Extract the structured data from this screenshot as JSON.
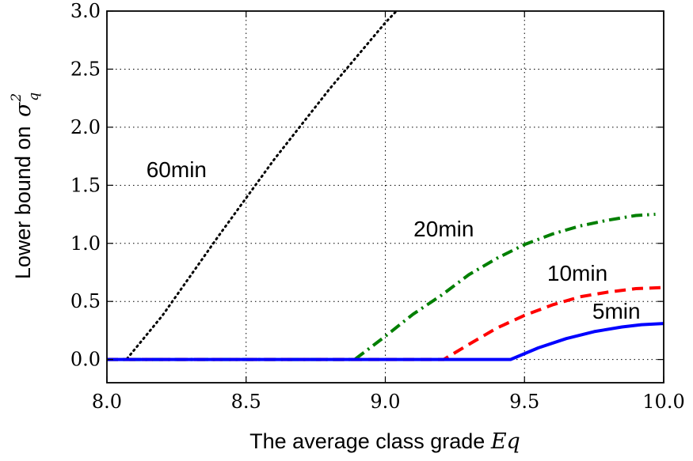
{
  "chart_data": {
    "type": "line",
    "title": "",
    "xlabel": "The average class grade",
    "xlabel_math": "Eq",
    "ylabel": "Lower bound on",
    "ylabel_math": "σ",
    "ylabel_math_sup": "2",
    "ylabel_math_sub": "q",
    "xlim": [
      8.0,
      10.0
    ],
    "ylim": [
      -0.2,
      3.0
    ],
    "xticks": [
      "8.0",
      "8.5",
      "9.0",
      "9.5",
      "10.0"
    ],
    "xtick_values": [
      8.0,
      8.5,
      9.0,
      9.5,
      10.0
    ],
    "yticks": [
      "0.0",
      "0.5",
      "1.0",
      "1.5",
      "2.0",
      "2.5",
      "3.0"
    ],
    "ytick_values": [
      0.0,
      0.5,
      1.0,
      1.5,
      2.0,
      2.5,
      3.0
    ],
    "grid": true,
    "legend": "none",
    "series": [
      {
        "name": "60min",
        "color": "#000000",
        "style": "dotted",
        "label_at": [
          8.25,
          1.57
        ],
        "points": [
          [
            8.0,
            0.0
          ],
          [
            8.07,
            0.0
          ],
          [
            8.2,
            0.38
          ],
          [
            8.4,
            1.06
          ],
          [
            8.6,
            1.72
          ],
          [
            8.8,
            2.33
          ],
          [
            9.0,
            2.9
          ],
          [
            9.04,
            3.0
          ]
        ]
      },
      {
        "name": "20min",
        "color": "#007f00",
        "style": "dashdot",
        "label_at": [
          9.21,
          1.06
        ],
        "points": [
          [
            8.0,
            0.0
          ],
          [
            8.89,
            0.0
          ],
          [
            9.0,
            0.2
          ],
          [
            9.1,
            0.39
          ],
          [
            9.2,
            0.55
          ],
          [
            9.3,
            0.73
          ],
          [
            9.4,
            0.87
          ],
          [
            9.5,
            0.99
          ],
          [
            9.6,
            1.08
          ],
          [
            9.7,
            1.15
          ],
          [
            9.8,
            1.2
          ],
          [
            9.9,
            1.24
          ],
          [
            9.97,
            1.25
          ]
        ]
      },
      {
        "name": "10min",
        "color": "#ff0000",
        "style": "dashed",
        "label_at": [
          9.69,
          0.68
        ],
        "points": [
          [
            8.0,
            0.0
          ],
          [
            9.21,
            0.0
          ],
          [
            9.3,
            0.13
          ],
          [
            9.4,
            0.27
          ],
          [
            9.5,
            0.38
          ],
          [
            9.6,
            0.47
          ],
          [
            9.7,
            0.54
          ],
          [
            9.8,
            0.58
          ],
          [
            9.9,
            0.61
          ],
          [
            10.0,
            0.62
          ]
        ]
      },
      {
        "name": "5min",
        "color": "#0000ff",
        "style": "solid",
        "label_at": [
          9.83,
          0.35
        ],
        "points": [
          [
            8.0,
            0.0
          ],
          [
            9.45,
            0.0
          ],
          [
            9.55,
            0.1
          ],
          [
            9.65,
            0.18
          ],
          [
            9.75,
            0.24
          ],
          [
            9.85,
            0.28
          ],
          [
            9.92,
            0.3
          ],
          [
            10.0,
            0.31
          ]
        ]
      }
    ]
  }
}
